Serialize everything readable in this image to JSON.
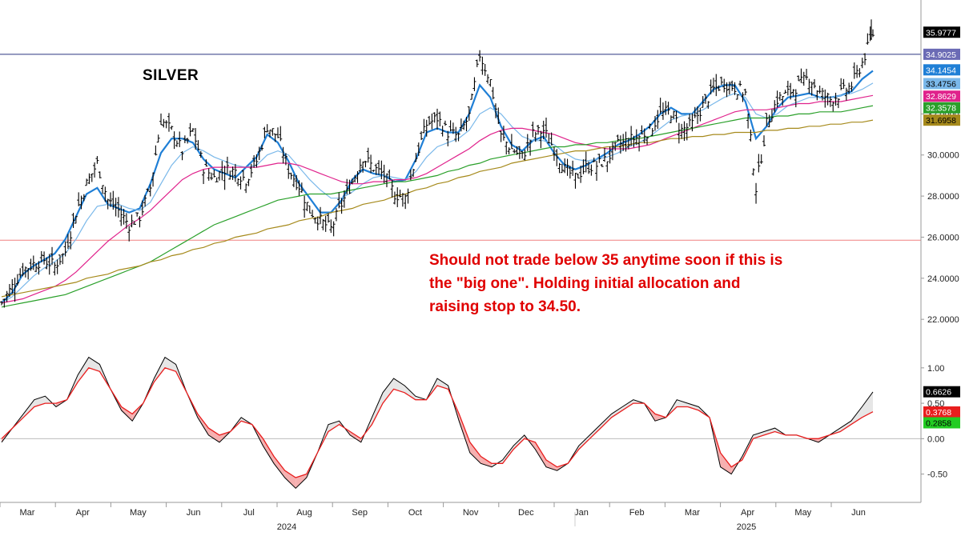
{
  "chart_data": [
    {
      "type": "candlestick",
      "title": "SILVER",
      "annotation": [
        "Should not trade below 35 anytime soon if this is",
        "the \"big one\". Holding initial allocation and",
        "raising stop to 34.50."
      ],
      "y_axis": {
        "ticks": [
          "22.0000",
          "24.0000",
          "26.0000",
          "28.0000",
          "30.0000",
          "32.0000"
        ],
        "ylim": [
          21.5,
          37.0
        ]
      },
      "horizontal_lines": [
        {
          "value": 34.9025,
          "color": "#2a3580"
        },
        {
          "value": 25.85,
          "color": "#f08080"
        }
      ],
      "price_tags": [
        {
          "label": "35.9777",
          "value": 35.9777,
          "bg": "#000000",
          "fg": "#ffffff"
        },
        {
          "label": "34.9025",
          "value": 34.9025,
          "bg": "#6b6bb5",
          "fg": "#ffffff"
        },
        {
          "label": "34.1454",
          "value": 34.1454,
          "bg": "#1f7fd6",
          "fg": "#ffffff"
        },
        {
          "label": "33.4756",
          "value": 33.4756,
          "bg": "#7ab8ea",
          "fg": "#000000"
        },
        {
          "label": "32.8629",
          "value": 32.8629,
          "bg": "#e0228c",
          "fg": "#ffffff"
        },
        {
          "label": "32.3578",
          "value": 32.3578,
          "bg": "#2aa02a",
          "fg": "#ffffff"
        },
        {
          "label": "31.6958",
          "value": 31.6958,
          "bg": "#a68a1c",
          "fg": "#000000"
        }
      ],
      "series": [
        {
          "name": "",
          "type": "ohlc",
          "color": "#000000",
          "close": [
            22.8,
            23.6,
            24.4,
            24.7,
            24.9,
            24.6,
            25.3,
            27.2,
            28.6,
            29.6,
            27.8,
            27.3,
            26.6,
            27.0,
            28.4,
            31.7,
            31.2,
            30.2,
            31.2,
            29.4,
            28.9,
            29.3,
            29.2,
            28.8,
            29.7,
            31.4,
            30.9,
            29.3,
            28.5,
            27.3,
            26.8,
            26.4,
            27.6,
            28.7,
            29.9,
            29.4,
            29.0,
            28.1,
            27.9,
            29.9,
            31.5,
            31.8,
            31.1,
            30.9,
            31.9,
            34.9,
            33.6,
            30.9,
            30.3,
            29.9,
            31.0,
            31.2,
            30.3,
            29.3,
            28.9,
            29.4,
            29.5,
            29.8,
            30.5,
            30.7,
            30.9,
            31.2,
            32.0,
            32.1,
            31.2,
            31.5,
            32.4,
            33.2,
            33.5,
            33.3,
            33.0,
            28.4,
            31.5,
            32.7,
            33.0,
            33.4,
            33.8,
            33.0,
            32.7,
            33.0,
            33.4,
            34.5,
            35.9
          ]
        },
        {
          "name": "",
          "type": "line",
          "color": "#1f7fd6",
          "values": [
            22.8,
            23.3,
            24.2,
            24.6,
            24.9,
            25.2,
            25.9,
            27.0,
            28.1,
            28.4,
            27.6,
            27.4,
            27.2,
            27.4,
            28.6,
            30.1,
            30.8,
            30.8,
            30.6,
            29.8,
            29.3,
            29.1,
            28.9,
            29.4,
            29.9,
            31.0,
            30.6,
            29.7,
            28.6,
            27.9,
            27.2,
            27.2,
            27.8,
            28.8,
            29.3,
            29.1,
            29.0,
            28.7,
            28.8,
            29.8,
            31.1,
            31.3,
            31.1,
            31.1,
            32.0,
            33.4,
            32.8,
            31.4,
            30.5,
            30.2,
            30.7,
            30.9,
            30.1,
            29.5,
            29.3,
            29.5,
            29.8,
            30.1,
            30.5,
            30.7,
            31.0,
            31.4,
            32.0,
            32.3,
            32.0,
            32.0,
            32.6,
            33.2,
            33.4,
            33.4,
            32.6,
            30.8,
            31.4,
            32.3,
            32.8,
            32.9,
            33.0,
            32.8,
            32.8,
            32.9,
            33.1,
            33.7,
            34.1
          ]
        },
        {
          "name": "",
          "type": "line",
          "color": "#7ab8ea",
          "values": [
            22.8,
            23.1,
            23.6,
            24.1,
            24.5,
            24.8,
            25.2,
            25.9,
            26.8,
            27.5,
            27.6,
            27.6,
            27.4,
            27.3,
            27.7,
            28.6,
            29.5,
            30.1,
            30.4,
            30.2,
            29.9,
            29.7,
            29.5,
            29.4,
            29.5,
            30.0,
            30.2,
            30.0,
            29.4,
            28.8,
            28.3,
            27.9,
            27.9,
            28.2,
            28.6,
            28.9,
            29.0,
            28.9,
            28.8,
            29.2,
            29.9,
            30.4,
            30.6,
            30.8,
            31.2,
            32.0,
            32.3,
            32.0,
            31.4,
            30.9,
            30.7,
            30.7,
            30.5,
            30.1,
            29.8,
            29.7,
            29.8,
            29.9,
            30.1,
            30.4,
            30.6,
            30.9,
            31.3,
            31.7,
            31.9,
            32.0,
            32.2,
            32.5,
            32.8,
            33.0,
            32.8,
            32.0,
            31.8,
            32.0,
            32.4,
            32.6,
            32.8,
            32.8,
            32.8,
            32.9,
            33.0,
            33.2,
            33.5
          ]
        },
        {
          "name": "",
          "type": "line",
          "color": "#e0228c",
          "values": [
            22.8,
            22.9,
            23.0,
            23.2,
            23.4,
            23.6,
            23.9,
            24.3,
            24.8,
            25.3,
            25.8,
            26.2,
            26.6,
            26.9,
            27.3,
            27.8,
            28.3,
            28.8,
            29.1,
            29.3,
            29.4,
            29.4,
            29.4,
            29.4,
            29.4,
            29.5,
            29.6,
            29.6,
            29.5,
            29.3,
            29.1,
            28.9,
            28.7,
            28.6,
            28.6,
            28.7,
            28.7,
            28.8,
            28.8,
            28.9,
            29.1,
            29.4,
            29.7,
            30.0,
            30.3,
            30.7,
            31.0,
            31.2,
            31.3,
            31.3,
            31.2,
            31.1,
            31.0,
            30.8,
            30.6,
            30.5,
            30.4,
            30.3,
            30.3,
            30.3,
            30.4,
            30.5,
            30.7,
            30.9,
            31.1,
            31.3,
            31.5,
            31.7,
            31.9,
            32.1,
            32.2,
            32.2,
            32.2,
            32.3,
            32.4,
            32.5,
            32.5,
            32.6,
            32.6,
            32.6,
            32.7,
            32.8,
            32.9
          ]
        },
        {
          "name": "",
          "type": "line",
          "color": "#2aa02a",
          "values": [
            22.6,
            22.7,
            22.8,
            22.9,
            23.0,
            23.1,
            23.2,
            23.4,
            23.6,
            23.8,
            24.0,
            24.2,
            24.4,
            24.6,
            24.8,
            25.1,
            25.4,
            25.7,
            26.0,
            26.3,
            26.6,
            26.8,
            27.0,
            27.2,
            27.4,
            27.6,
            27.8,
            27.9,
            28.0,
            28.1,
            28.1,
            28.1,
            28.2,
            28.3,
            28.4,
            28.5,
            28.6,
            28.7,
            28.7,
            28.8,
            28.9,
            29.0,
            29.2,
            29.3,
            29.5,
            29.6,
            29.8,
            29.9,
            30.0,
            30.1,
            30.2,
            30.3,
            30.4,
            30.4,
            30.5,
            30.5,
            30.6,
            30.6,
            30.7,
            30.8,
            30.8,
            30.9,
            31.0,
            31.1,
            31.2,
            31.3,
            31.4,
            31.5,
            31.6,
            31.7,
            31.8,
            31.8,
            31.8,
            31.9,
            31.9,
            32.0,
            32.0,
            32.1,
            32.1,
            32.1,
            32.2,
            32.3,
            32.4
          ]
        },
        {
          "name": "",
          "type": "line",
          "color": "#a68a1c",
          "values": [
            23.1,
            23.2,
            23.3,
            23.4,
            23.5,
            23.6,
            23.7,
            23.8,
            24.0,
            24.1,
            24.2,
            24.4,
            24.5,
            24.6,
            24.8,
            24.9,
            25.1,
            25.2,
            25.4,
            25.5,
            25.7,
            25.8,
            26.0,
            26.1,
            26.2,
            26.4,
            26.5,
            26.6,
            26.8,
            26.9,
            27.0,
            27.2,
            27.3,
            27.4,
            27.6,
            27.7,
            27.8,
            28.0,
            28.1,
            28.3,
            28.4,
            28.6,
            28.7,
            28.9,
            29.0,
            29.2,
            29.3,
            29.4,
            29.6,
            29.7,
            29.8,
            29.9,
            30.0,
            30.1,
            30.2,
            30.2,
            30.3,
            30.4,
            30.4,
            30.5,
            30.6,
            30.6,
            30.7,
            30.8,
            30.8,
            30.9,
            30.9,
            31.0,
            31.0,
            31.1,
            31.1,
            31.1,
            31.2,
            31.2,
            31.3,
            31.3,
            31.4,
            31.4,
            31.5,
            31.5,
            31.6,
            31.6,
            31.7
          ]
        }
      ]
    },
    {
      "type": "line",
      "title": "",
      "y_axis": {
        "ticks": [
          "1.00",
          "0.50",
          "0.00",
          "-0.50"
        ],
        "ylim": [
          -0.9,
          1.45
        ]
      },
      "zero_line": {
        "value": 0.0,
        "color": "#bbbbbb"
      },
      "fill_colors": {
        "above": "#e6e6e6",
        "below": "#f6b0b0"
      },
      "price_tags": [
        {
          "label": "0.6626",
          "value": 0.6626,
          "bg": "#000000",
          "fg": "#ffffff"
        },
        {
          "label": "0.3768",
          "value": 0.3768,
          "bg": "#e81e1e",
          "fg": "#ffffff"
        },
        {
          "label": "0.2858",
          "value": 0.2858,
          "bg": "#22cc22",
          "fg": "#000000"
        }
      ],
      "series": [
        {
          "name": "",
          "color": "#000000",
          "values": [
            -0.05,
            0.15,
            0.35,
            0.55,
            0.6,
            0.45,
            0.55,
            0.9,
            1.15,
            1.05,
            0.7,
            0.4,
            0.25,
            0.5,
            0.85,
            1.15,
            1.05,
            0.65,
            0.3,
            0.05,
            -0.05,
            0.1,
            0.3,
            0.2,
            -0.1,
            -0.35,
            -0.55,
            -0.7,
            -0.55,
            -0.2,
            0.2,
            0.25,
            0.05,
            -0.05,
            0.3,
            0.65,
            0.85,
            0.75,
            0.6,
            0.55,
            0.85,
            0.75,
            0.25,
            -0.2,
            -0.35,
            -0.4,
            -0.3,
            -0.1,
            0.05,
            -0.15,
            -0.4,
            -0.45,
            -0.35,
            -0.1,
            0.05,
            0.2,
            0.35,
            0.45,
            0.55,
            0.5,
            0.25,
            0.3,
            0.55,
            0.5,
            0.45,
            0.3,
            -0.4,
            -0.5,
            -0.25,
            0.05,
            0.1,
            0.15,
            0.05,
            0.05,
            0.0,
            -0.05,
            0.05,
            0.15,
            0.25,
            0.45,
            0.66
          ]
        },
        {
          "name": "",
          "color": "#e81e1e",
          "values": [
            0.0,
            0.15,
            0.3,
            0.45,
            0.5,
            0.5,
            0.55,
            0.8,
            1.0,
            0.95,
            0.7,
            0.45,
            0.35,
            0.5,
            0.8,
            1.0,
            0.95,
            0.65,
            0.35,
            0.15,
            0.05,
            0.1,
            0.25,
            0.2,
            0.0,
            -0.25,
            -0.45,
            -0.55,
            -0.5,
            -0.2,
            0.1,
            0.2,
            0.1,
            0.0,
            0.2,
            0.5,
            0.7,
            0.65,
            0.55,
            0.55,
            0.75,
            0.7,
            0.35,
            -0.05,
            -0.25,
            -0.35,
            -0.35,
            -0.15,
            0.0,
            -0.05,
            -0.3,
            -0.4,
            -0.35,
            -0.15,
            0.0,
            0.15,
            0.3,
            0.4,
            0.5,
            0.5,
            0.35,
            0.3,
            0.45,
            0.45,
            0.4,
            0.3,
            -0.2,
            -0.4,
            -0.3,
            0.0,
            0.05,
            0.1,
            0.05,
            0.05,
            0.0,
            0.0,
            0.05,
            0.1,
            0.2,
            0.3,
            0.38
          ]
        },
        {
          "name": "",
          "color": "#22cc22",
          "values": []
        }
      ]
    }
  ],
  "x_axis": {
    "months": [
      "Mar",
      "Apr",
      "May",
      "Jun",
      "Jul",
      "Aug",
      "Sep",
      "Oct",
      "Nov",
      "Dec",
      "Jan",
      "Feb",
      "Mar",
      "Apr",
      "May",
      "Jun"
    ],
    "years": [
      "2024",
      "2025"
    ]
  }
}
